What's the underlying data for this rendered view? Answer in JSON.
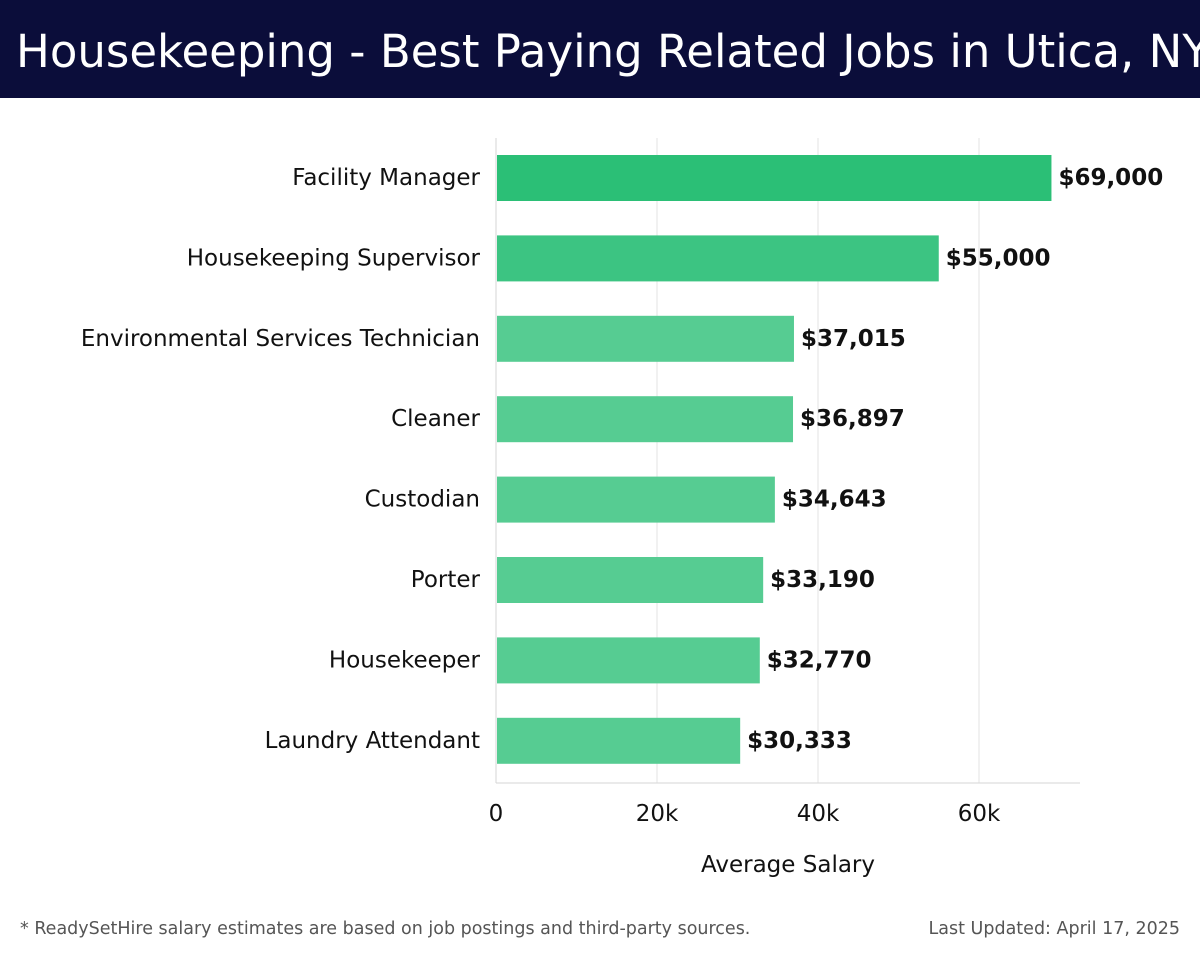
{
  "page": {
    "title": "Housekeeping - Best Paying Related Jobs in Utica, NY",
    "footnote": "* ReadySetHire salary estimates are based on job postings and third-party sources.",
    "updated": "Last Updated: April 17, 2025"
  },
  "colors": {
    "header_bg": "#0b0d3a",
    "bar_top": "#2bbf76",
    "bar_second": "#3cc482",
    "bar_rest": "#56cc92"
  },
  "chart_data": {
    "type": "bar",
    "orientation": "horizontal",
    "categories": [
      "Facility Manager",
      "Housekeeping Supervisor",
      "Environmental Services Technician",
      "Cleaner",
      "Custodian",
      "Porter",
      "Housekeeper",
      "Laundry Attendant"
    ],
    "values": [
      69000,
      55000,
      37015,
      36897,
      34643,
      33190,
      32770,
      30333
    ],
    "value_labels": [
      "$69,000",
      "$55,000",
      "$37,015",
      "$36,897",
      "$34,643",
      "$33,190",
      "$32,770",
      "$30,333"
    ],
    "xlabel": "Average Salary",
    "xlim": [
      0,
      72700
    ],
    "xticks": [
      0,
      20000,
      40000,
      60000
    ],
    "xtick_labels": [
      "0",
      "20k",
      "40k",
      "60k"
    ],
    "grid": "vertical"
  }
}
